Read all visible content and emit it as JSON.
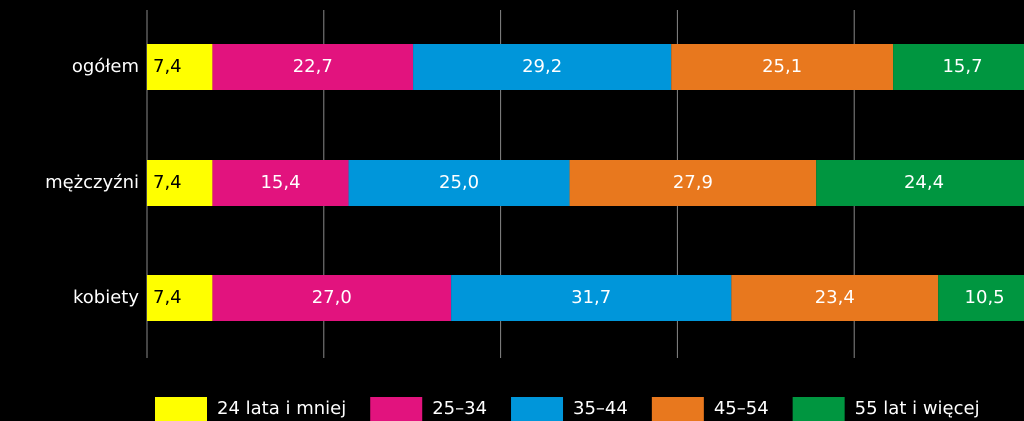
{
  "chart_data": {
    "type": "stacked-bar-horizontal",
    "categories": [
      "ogółem",
      "mężczyźni",
      "kobiety"
    ],
    "series": [
      {
        "name": "24 lata i mniej",
        "color": "#ffff00",
        "values": [
          7.4,
          7.4,
          7.4
        ],
        "value_labels": [
          "7,4",
          "7,4",
          "7,4"
        ]
      },
      {
        "name": "25–34",
        "color": "#e2137e",
        "values": [
          22.7,
          15.4,
          27.0
        ],
        "value_labels": [
          "22,7",
          "15,4",
          "27,0"
        ]
      },
      {
        "name": "35–44",
        "color": "#0096da",
        "values": [
          29.2,
          25.0,
          31.7
        ],
        "value_labels": [
          "29,2",
          "25,0",
          "31,7"
        ]
      },
      {
        "name": "45–54",
        "color": "#e8781e",
        "values": [
          25.1,
          27.9,
          23.4
        ],
        "value_labels": [
          "25,1",
          "27,9",
          "23,4"
        ]
      },
      {
        "name": "55 lat i więcej",
        "color": "#009640",
        "values": [
          15.7,
          24.4,
          10.5
        ],
        "value_labels": [
          "15,7",
          "24,4",
          "10,5"
        ]
      }
    ],
    "xlim": [
      0,
      100
    ],
    "xticks": [
      0,
      20,
      40,
      60,
      80
    ],
    "grid": true,
    "legend": "bottom"
  }
}
